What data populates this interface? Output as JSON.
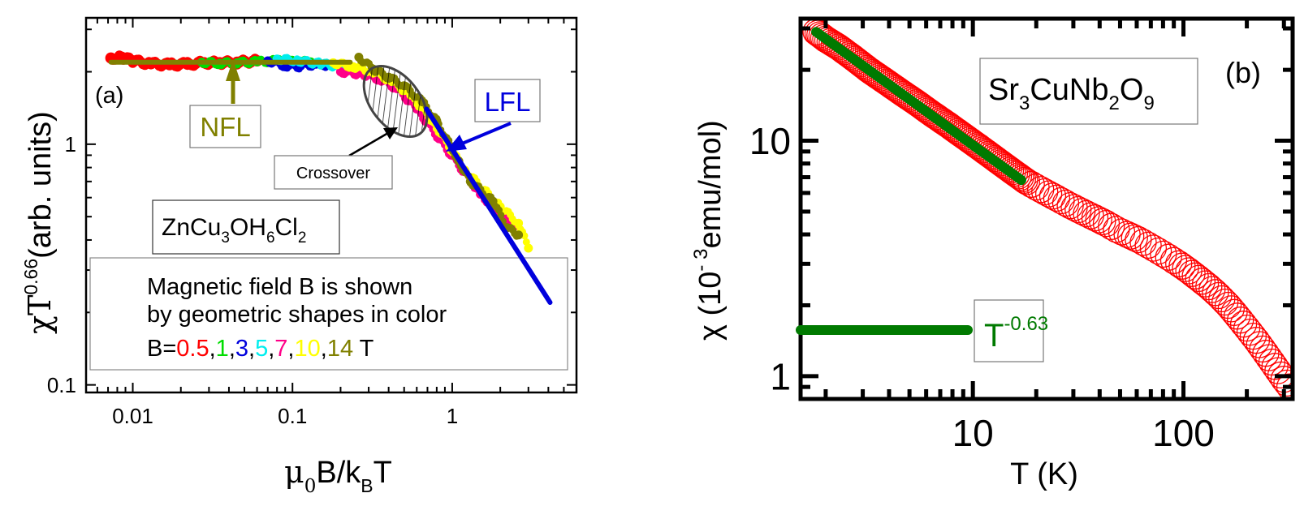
{
  "chart_data": [
    {
      "panel_label": "(a)",
      "type": "scatter",
      "xscale": "log",
      "yscale": "log",
      "xlim": [
        0.0051,
        6.0
      ],
      "ylim": [
        0.093,
        3.35
      ],
      "xticks": [
        0.01,
        0.1,
        1
      ],
      "xtick_labels": [
        "0.01",
        "0.1",
        "1"
      ],
      "yticks": [
        0.1,
        1
      ],
      "ytick_labels": [
        "0.1",
        "1"
      ],
      "xlabel": {
        "base": "μ",
        "sub1": "0",
        "mid": "B/k",
        "sub2": "B",
        "tail": "T"
      },
      "ylabel": {
        "base": "χT",
        "sup": "0.66",
        "tail": "(arb. units)"
      },
      "formula": {
        "p1": "ZnCu",
        "s1": "3",
        "p2": "OH",
        "s2": "6",
        "p3": "Cl",
        "s3": "2"
      },
      "annotations": {
        "nfl": "NFL",
        "lfl": "LFL",
        "crossover": "Crossover"
      },
      "legend": {
        "line1": "Magnetic field B is shown",
        "line2": "by geometric shapes in color",
        "prefix": "B=",
        "values": [
          {
            "label": "0.5",
            "color": "#ff0000"
          },
          {
            "label": "1",
            "color": "#00dd00"
          },
          {
            "label": "3",
            "color": "#0000dd"
          },
          {
            "label": "5",
            "color": "#00eeee"
          },
          {
            "label": "7",
            "color": "#ff0088"
          },
          {
            "label": "10",
            "color": "#ffff00"
          },
          {
            "label": "14",
            "color": "#808000"
          }
        ],
        "suffix": "T",
        "separator": ","
      },
      "series": [
        {
          "name": "B=0.5 T",
          "color": "#ff0000",
          "x": [
            0.0073,
            0.0085,
            0.01,
            0.013,
            0.017,
            0.022,
            0.028,
            0.035,
            0.045,
            0.06
          ],
          "y": [
            2.28,
            2.3,
            2.22,
            2.16,
            2.14,
            2.15,
            2.18,
            2.18,
            2.19,
            2.22
          ]
        },
        {
          "name": "B=1 T",
          "color": "#00dd00",
          "x": [
            0.027,
            0.035,
            0.045,
            0.06,
            0.08,
            0.1,
            0.13
          ],
          "y": [
            2.19,
            2.17,
            2.18,
            2.2,
            2.22,
            2.2,
            2.2
          ]
        },
        {
          "name": "B=3 T",
          "color": "#0000dd",
          "x": [
            0.07,
            0.09,
            0.11,
            0.14,
            0.18
          ],
          "y": [
            2.22,
            2.12,
            2.1,
            2.15,
            2.12
          ]
        },
        {
          "name": "B=5 T",
          "color": "#00eeee",
          "x": [
            0.08,
            0.11,
            0.15,
            0.2,
            0.26,
            1.6
          ],
          "y": [
            2.26,
            2.22,
            2.16,
            2.1,
            2.02,
            0.6
          ]
        },
        {
          "name": "B=7 T",
          "color": "#ff0088",
          "x": [
            0.2,
            0.28,
            0.36,
            0.45,
            0.6,
            1.5,
            1.9,
            2.4
          ],
          "y": [
            2.0,
            1.95,
            1.85,
            1.7,
            1.4,
            0.62,
            0.53,
            0.45
          ]
        },
        {
          "name": "B=10 T",
          "color": "#ffff00",
          "x": [
            0.18,
            0.24,
            0.32,
            0.42,
            0.55,
            0.75,
            1.2,
            2.0,
            2.6,
            3.0
          ],
          "y": [
            2.18,
            2.1,
            2.0,
            1.82,
            1.6,
            1.25,
            0.78,
            0.55,
            0.47,
            0.37
          ]
        },
        {
          "name": "B=14 T",
          "color": "#808000",
          "x": [
            0.26,
            0.32,
            0.4,
            0.5,
            0.65,
            0.8,
            1.1,
            1.3,
            1.8,
            2.2,
            2.6
          ],
          "y": [
            2.3,
            2.05,
            1.9,
            1.75,
            1.5,
            1.25,
            0.85,
            0.7,
            0.58,
            0.45,
            0.42
          ]
        }
      ],
      "fits": [
        {
          "name": "NFL",
          "color": "#808000",
          "x": [
            0.0073,
            0.23
          ],
          "y": [
            2.19,
            2.19
          ]
        },
        {
          "name": "LFL",
          "color": "#0000dd",
          "x": [
            0.69,
            4.1
          ],
          "y": [
            1.4,
            0.22
          ]
        }
      ],
      "crossover_region": {
        "x": 0.45,
        "y": 1.45
      }
    },
    {
      "panel_label": "(b)",
      "type": "scatter",
      "xscale": "log",
      "yscale": "log",
      "xlim": [
        1.52,
        330
      ],
      "ylim": [
        0.8,
        33
      ],
      "xticks": [
        10,
        100
      ],
      "xtick_labels": [
        "10",
        "100"
      ],
      "yticks": [
        1,
        10
      ],
      "ytick_labels": [
        "1",
        "10"
      ],
      "xlabel": "T (K)",
      "ylabel": {
        "pre": "χ (10",
        "sup": "- 3",
        "post": "emu/mol)"
      },
      "formula": {
        "p1": "Sr",
        "s1": "3",
        "p2": "CuNb",
        "s2": "2",
        "p3": "O",
        "s3": "9"
      },
      "legend": {
        "base": "T",
        "sup": "-0.63",
        "color": "#007a00"
      },
      "series": [
        {
          "name": "Sr3CuNb2O9 data",
          "color": "#ff0000",
          "x": [
            1.8,
            2.0,
            2.3,
            2.7,
            3.2,
            3.8,
            4.5,
            5.4,
            6.4,
            7.6,
            9.0,
            10.7,
            12.7,
            15.1,
            18,
            21,
            25,
            29,
            33,
            38,
            43,
            48,
            54,
            61,
            68,
            76,
            85,
            95,
            106,
            118,
            132,
            147,
            163,
            180,
            200,
            222,
            246,
            272,
            300,
            320
          ],
          "y": [
            29,
            27,
            25,
            22.5,
            20,
            18,
            16.2,
            14.5,
            13,
            11.7,
            10.5,
            9.4,
            8.4,
            7.5,
            6.7,
            6.2,
            5.7,
            5.3,
            5.0,
            4.7,
            4.45,
            4.2,
            4.0,
            3.8,
            3.6,
            3.4,
            3.2,
            3.0,
            2.8,
            2.6,
            2.4,
            2.2,
            2.0,
            1.8,
            1.6,
            1.42,
            1.25,
            1.1,
            0.97,
            0.9
          ]
        }
      ],
      "fits": [
        {
          "name": "T^-0.63",
          "color": "#007a00",
          "x": [
            1.8,
            17
          ],
          "y": [
            29,
            6.8
          ]
        }
      ]
    }
  ]
}
